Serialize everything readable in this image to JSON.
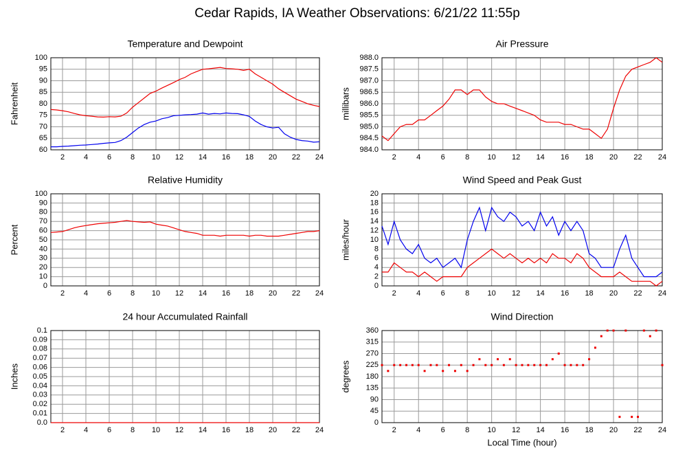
{
  "page_title": "Cedar Rapids, IA Weather Observations: 6/21/22 11:55p",
  "chart_data": [
    {
      "type": "line",
      "title": "Temperature and Dewpoint",
      "y_label": "Fahrenheit",
      "x": [
        1,
        1.5,
        2,
        2.5,
        3,
        3.5,
        4,
        4.5,
        5,
        5.5,
        6,
        6.5,
        7,
        7.5,
        8,
        8.5,
        9,
        9.5,
        10,
        10.5,
        11,
        11.5,
        12,
        12.5,
        13,
        13.5,
        14,
        14.5,
        15,
        15.5,
        16,
        16.5,
        17,
        17.5,
        18,
        18.5,
        19,
        19.5,
        20,
        20.5,
        21,
        21.5,
        22,
        22.5,
        23,
        23.5,
        24
      ],
      "xlim": [
        1,
        24
      ],
      "xticks": [
        2,
        4,
        6,
        8,
        10,
        12,
        14,
        16,
        18,
        20,
        22,
        24
      ],
      "ylim": [
        60,
        100
      ],
      "yticks": [
        60,
        65,
        70,
        75,
        80,
        85,
        90,
        95,
        100
      ],
      "grid": true,
      "series": [
        {
          "color": "#ee0000",
          "values": [
            77.5,
            77.3,
            77,
            76.5,
            75.8,
            75.2,
            74.8,
            74.6,
            74.3,
            74.2,
            74.4,
            74.3,
            74.6,
            76,
            78.5,
            80.5,
            82.5,
            84.5,
            85.5,
            86.8,
            88,
            89.2,
            90.5,
            91.5,
            93,
            94,
            95,
            95.2,
            95.5,
            95.8,
            95.3,
            95.2,
            95,
            94.5,
            95,
            93,
            91.5,
            90,
            88.5,
            86.5,
            85,
            83.5,
            82,
            81,
            80,
            79.3,
            78.8
          ]
        },
        {
          "color": "#0000ee",
          "values": [
            61.3,
            61.3,
            61.5,
            61.6,
            61.8,
            62,
            62.1,
            62.3,
            62.5,
            62.8,
            63,
            63.2,
            64,
            65.5,
            67.5,
            69.5,
            71,
            72,
            72.5,
            73.5,
            74,
            74.8,
            75,
            75.2,
            75.3,
            75.5,
            76,
            75.5,
            75.8,
            75.6,
            76,
            75.8,
            75.7,
            75.2,
            74.5,
            72.5,
            71,
            70,
            69.5,
            69.8,
            67,
            65.5,
            64.5,
            64,
            63.8,
            63.3,
            63.5
          ]
        }
      ]
    },
    {
      "type": "line",
      "title": "Air Pressure",
      "y_label": "millibars",
      "x": [
        1,
        1.5,
        2,
        2.5,
        3,
        3.5,
        4,
        4.5,
        5,
        5.5,
        6,
        6.5,
        7,
        7.5,
        8,
        8.5,
        9,
        9.5,
        10,
        10.5,
        11,
        11.5,
        12,
        12.5,
        13,
        13.5,
        14,
        14.5,
        15,
        15.5,
        16,
        16.5,
        17,
        17.5,
        18,
        18.5,
        19,
        19.5,
        20,
        20.5,
        21,
        21.5,
        22,
        22.5,
        23,
        23.5,
        24
      ],
      "xlim": [
        1,
        24
      ],
      "xticks": [
        2,
        4,
        6,
        8,
        10,
        12,
        14,
        16,
        18,
        20,
        22,
        24
      ],
      "ylim": [
        984,
        988
      ],
      "yticks": [
        {
          "value": 984,
          "label": "984.0"
        },
        984.5,
        {
          "value": 985,
          "label": "985.0"
        },
        985.5,
        {
          "value": 986,
          "label": "986.0"
        },
        986.5,
        {
          "value": 987,
          "label": "987.0"
        },
        987.5,
        {
          "value": 988,
          "label": "988.0"
        }
      ],
      "grid": true,
      "series": [
        {
          "color": "#ee0000",
          "values": [
            984.6,
            984.4,
            984.7,
            985,
            985.1,
            985.1,
            985.3,
            985.3,
            985.5,
            985.7,
            985.9,
            986.2,
            986.6,
            986.6,
            986.4,
            986.6,
            986.6,
            986.3,
            986.1,
            986,
            986,
            985.9,
            985.8,
            985.7,
            985.6,
            985.5,
            985.3,
            985.2,
            985.2,
            985.2,
            985.1,
            985.1,
            985,
            984.9,
            984.9,
            984.7,
            984.5,
            984.9,
            985.8,
            986.6,
            987.2,
            987.5,
            987.6,
            987.7,
            987.8,
            988,
            987.8
          ]
        }
      ]
    },
    {
      "type": "line",
      "title": "Relative Humidity",
      "y_label": "Percent",
      "x": [
        1,
        1.5,
        2,
        2.5,
        3,
        3.5,
        4,
        4.5,
        5,
        5.5,
        6,
        6.5,
        7,
        7.5,
        8,
        8.5,
        9,
        9.5,
        10,
        10.5,
        11,
        11.5,
        12,
        12.5,
        13,
        13.5,
        14,
        14.5,
        15,
        15.5,
        16,
        16.5,
        17,
        17.5,
        18,
        18.5,
        19,
        19.5,
        20,
        20.5,
        21,
        21.5,
        22,
        22.5,
        23,
        23.5,
        24
      ],
      "xlim": [
        1,
        24
      ],
      "xticks": [
        2,
        4,
        6,
        8,
        10,
        12,
        14,
        16,
        18,
        20,
        22,
        24
      ],
      "ylim": [
        0,
        100
      ],
      "yticks": [
        0,
        10,
        20,
        30,
        40,
        50,
        60,
        70,
        80,
        90,
        100
      ],
      "grid": true,
      "series": [
        {
          "color": "#ee0000",
          "values": [
            58,
            58.5,
            59,
            61,
            63,
            64.5,
            65.5,
            66.5,
            67.5,
            68,
            68.5,
            69,
            70,
            71,
            70,
            69.5,
            69,
            69.5,
            67,
            66,
            65,
            63,
            61,
            59,
            58,
            57,
            55,
            55,
            55,
            54,
            55,
            55,
            55,
            55,
            54,
            55,
            55,
            54,
            54,
            54,
            55,
            56,
            57,
            58,
            59,
            59,
            60
          ]
        }
      ]
    },
    {
      "type": "line",
      "title": "Wind Speed and Peak Gust",
      "y_label": "miles/hour",
      "x": [
        1,
        1.5,
        2,
        2.5,
        3,
        3.5,
        4,
        4.5,
        5,
        5.5,
        6,
        6.5,
        7,
        7.5,
        8,
        8.5,
        9,
        9.5,
        10,
        10.5,
        11,
        11.5,
        12,
        12.5,
        13,
        13.5,
        14,
        14.5,
        15,
        15.5,
        16,
        16.5,
        17,
        17.5,
        18,
        18.5,
        19,
        19.5,
        20,
        20.5,
        21,
        21.5,
        22,
        22.5,
        23,
        23.5,
        24
      ],
      "xlim": [
        1,
        24
      ],
      "xticks": [
        2,
        4,
        6,
        8,
        10,
        12,
        14,
        16,
        18,
        20,
        22,
        24
      ],
      "ylim": [
        0,
        20
      ],
      "yticks": [
        0,
        2,
        4,
        6,
        8,
        10,
        12,
        14,
        16,
        18,
        20
      ],
      "grid": true,
      "series": [
        {
          "color": "#0000ee",
          "values": [
            13,
            9,
            14,
            10,
            8,
            7,
            9,
            6,
            5,
            6,
            4,
            5,
            6,
            4,
            10,
            14,
            17,
            12,
            17,
            15,
            14,
            16,
            15,
            13,
            14,
            12,
            16,
            13,
            15,
            11,
            14,
            12,
            14,
            12,
            7,
            6,
            4,
            4,
            4,
            8,
            11,
            6,
            4,
            2,
            2,
            2,
            3
          ]
        },
        {
          "color": "#ee0000",
          "values": [
            3,
            3,
            5,
            4,
            3,
            3,
            2,
            3,
            2,
            1,
            2,
            2,
            2,
            2,
            4,
            5,
            6,
            7,
            8,
            7,
            6,
            7,
            6,
            5,
            6,
            5,
            6,
            5,
            7,
            6,
            6,
            5,
            7,
            6,
            4,
            3,
            2,
            2,
            2,
            3,
            2,
            1,
            1,
            1,
            1,
            0,
            1
          ]
        }
      ]
    },
    {
      "type": "line",
      "title": "24 hour Accumulated Rainfall",
      "y_label": "Inches",
      "x": [
        1,
        24
      ],
      "xlim": [
        1,
        24
      ],
      "xticks": [
        2,
        4,
        6,
        8,
        10,
        12,
        14,
        16,
        18,
        20,
        22,
        24
      ],
      "ylim": [
        0,
        0.1
      ],
      "yticks": [
        {
          "value": 0,
          "label": "0.0"
        },
        0.01,
        0.02,
        0.03,
        0.04,
        0.05,
        0.06,
        0.07,
        0.08,
        0.09,
        0.1
      ],
      "grid": true,
      "series": [
        {
          "color": "#ee0000",
          "values": [
            0,
            0
          ]
        }
      ]
    },
    {
      "type": "scatter",
      "title": "Wind Direction",
      "y_label": "degrees",
      "x_label": "Local Time (hour)",
      "x": [
        1,
        1.5,
        2,
        2.5,
        3,
        3.5,
        4,
        4.5,
        5,
        5.5,
        6,
        6.5,
        7,
        7.5,
        8,
        8.5,
        9,
        9.5,
        10,
        10.5,
        11,
        11.5,
        12,
        12.5,
        13,
        13.5,
        14,
        14.5,
        15,
        15.5,
        16,
        16.5,
        17,
        17.5,
        18,
        18.5,
        19,
        19.5,
        20,
        20.5,
        21,
        21.5,
        22,
        22.5,
        23,
        23.5,
        24
      ],
      "xlim": [
        1,
        24
      ],
      "xticks": [
        2,
        4,
        6,
        8,
        10,
        12,
        14,
        16,
        18,
        20,
        22,
        24
      ],
      "ylim": [
        0,
        360
      ],
      "yticks": [
        0,
        45,
        90,
        135,
        180,
        225,
        270,
        315,
        360
      ],
      "grid": true,
      "series": [
        {
          "color": "#ee0000",
          "values": [
            225,
            202,
            225,
            225,
            225,
            225,
            225,
            202,
            225,
            225,
            202,
            225,
            202,
            225,
            202,
            225,
            248,
            225,
            225,
            248,
            225,
            248,
            225,
            225,
            225,
            225,
            225,
            225,
            248,
            270,
            225,
            225,
            225,
            225,
            248,
            293,
            338,
            360,
            360,
            22.5,
            360,
            22.5,
            22.5,
            360,
            338,
            360,
            225
          ]
        }
      ]
    }
  ]
}
